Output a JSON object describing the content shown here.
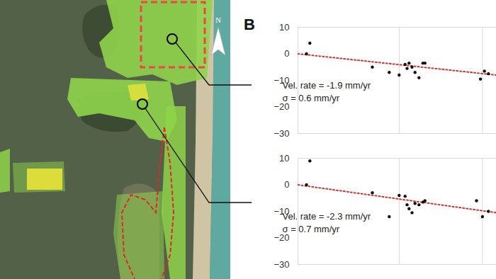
{
  "panel_label": "B",
  "map": {
    "north_label": "N"
  },
  "chart_data": [
    {
      "type": "scatter",
      "x": [
        4.3,
        6,
        37.5,
        46,
        51,
        54,
        55,
        56,
        57.5,
        59,
        61,
        63,
        64,
        92,
        94,
        96
      ],
      "values": [
        0,
        4,
        -5,
        -7,
        -8,
        -4,
        -5.5,
        -3.5,
        -5,
        -7,
        -9,
        -3.5,
        -3.5,
        -9.5,
        -6.5,
        -7.5
      ],
      "color": "#111111",
      "marker": "circle",
      "trend": {
        "x": [
          0,
          100
        ],
        "values": [
          0,
          -8
        ],
        "color": "#d9302c",
        "line_style": "dotted"
      },
      "annotations": [
        "Vel. rate = -1.9 mm/yr",
        "σ = 0.6 mm/yr"
      ],
      "xlim": [
        0,
        100
      ],
      "xticks": [
        51,
        93
      ],
      "ylim": [
        -30,
        10
      ],
      "yticks": [
        10,
        0,
        -10,
        -20,
        -30
      ],
      "grid": "x",
      "tick_labels": "y"
    },
    {
      "type": "scatter",
      "x": [
        4.3,
        6,
        37.5,
        46,
        51,
        54,
        55,
        56,
        57.5,
        59,
        61,
        63,
        64,
        90,
        93,
        96
      ],
      "values": [
        0,
        9,
        -3,
        -12,
        -4,
        -4.3,
        -7.5,
        -9,
        -10.5,
        -7,
        -7.5,
        -6.5,
        -6,
        -6,
        -12,
        -10
      ],
      "color": "#111111",
      "marker": "circle",
      "trend": {
        "x": [
          0,
          100
        ],
        "values": [
          0,
          -10.5
        ],
        "color": "#d9302c",
        "line_style": "dotted"
      },
      "annotations": [
        "Vel. rate = -2.3 mm/yr",
        "σ = 0.7 mm/yr"
      ],
      "xlim": [
        0,
        100
      ],
      "xticks": [
        51,
        93
      ],
      "ylim": [
        -30,
        10
      ],
      "yticks": [
        10,
        0,
        -10,
        -20,
        -30
      ],
      "grid": "x",
      "tick_labels": "y"
    }
  ]
}
